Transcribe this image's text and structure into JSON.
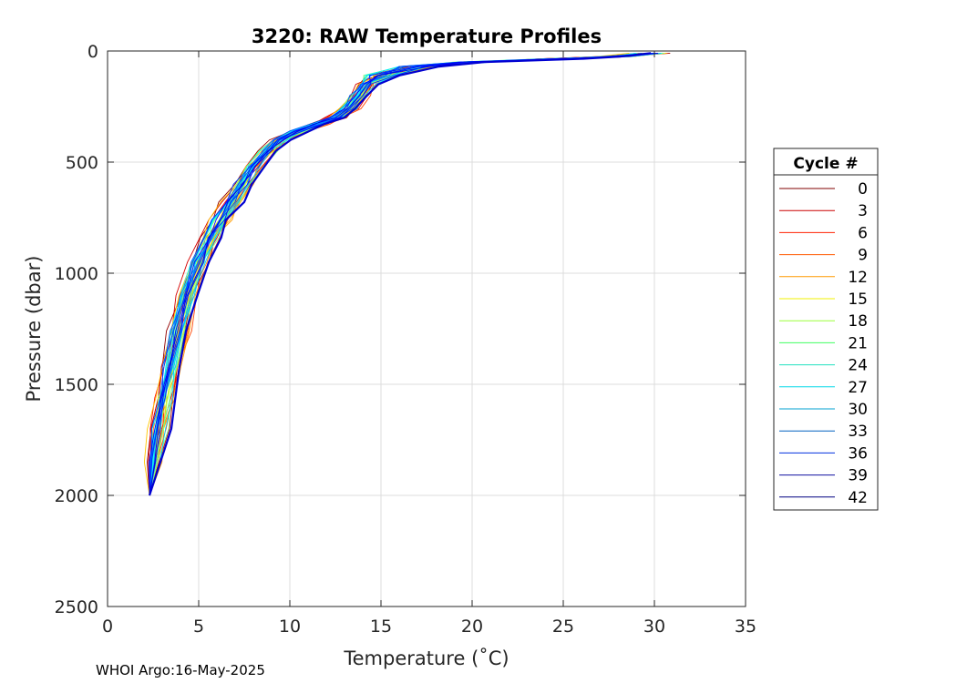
{
  "chart_data": {
    "type": "line",
    "title": "3220: RAW Temperature Profiles",
    "xlabel": "Temperature (˚C)",
    "ylabel": "Pressure (dbar)",
    "xlim": [
      0,
      35
    ],
    "ylim": [
      0,
      2500
    ],
    "y_reversed": true,
    "grid": true,
    "x_ticks": [
      0,
      5,
      10,
      15,
      20,
      25,
      30,
      35
    ],
    "y_ticks": [
      0,
      500,
      1000,
      1500,
      2000,
      2500
    ],
    "legend": {
      "title": "Cycle #",
      "placement": "right-outside",
      "entries": [
        {
          "label": "0",
          "color": "#800000"
        },
        {
          "label": "3",
          "color": "#cc0000"
        },
        {
          "label": "6",
          "color": "#ff2000"
        },
        {
          "label": "9",
          "color": "#ff5a00"
        },
        {
          "label": "12",
          "color": "#ff9a00"
        },
        {
          "label": "15",
          "color": "#f0f000"
        },
        {
          "label": "18",
          "color": "#9aff3a"
        },
        {
          "label": "21",
          "color": "#40ff60"
        },
        {
          "label": "24",
          "color": "#20e0c0"
        },
        {
          "label": "27",
          "color": "#00d8e8"
        },
        {
          "label": "30",
          "color": "#00a0d0"
        },
        {
          "label": "33",
          "color": "#0060c0"
        },
        {
          "label": "36",
          "color": "#0030e0"
        },
        {
          "label": "39",
          "color": "#1010a0"
        },
        {
          "label": "42",
          "color": "#000080"
        }
      ]
    },
    "base_profile": {
      "temperature": [
        29.8,
        28.0,
        25.0,
        20.0,
        17.0,
        15.0,
        14.2,
        13.8,
        13.2,
        12.5,
        11.5,
        10.5,
        9.5,
        8.8,
        8.0,
        7.4,
        6.8,
        6.2,
        5.6,
        5.0,
        4.4,
        3.9,
        3.5,
        3.1,
        2.8,
        2.5,
        2.3
      ],
      "pressure": [
        10,
        25,
        35,
        50,
        70,
        110,
        150,
        200,
        260,
        300,
        330,
        360,
        400,
        450,
        520,
        600,
        680,
        760,
        840,
        950,
        1100,
        1260,
        1420,
        1560,
        1700,
        1850,
        2000
      ]
    },
    "num_profiles": 43
  },
  "footer": "WHOI Argo:16-May-2025"
}
